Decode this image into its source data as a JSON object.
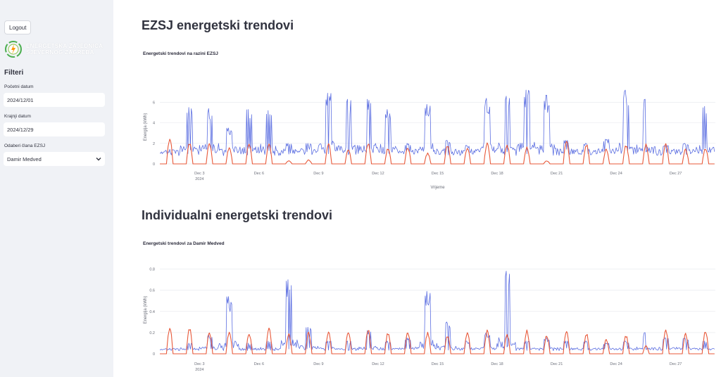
{
  "sidebar": {
    "logout_label": "Logout",
    "logo_text_line1": "ENERGETSKA ZAJEDNICA",
    "logo_text_line2": "SJEVERNOG ZAGREBA",
    "filters_title": "Filteri",
    "start_date_label": "Početni datum",
    "start_date_value": "2024/12/01",
    "end_date_label": "Krajnji datum",
    "end_date_value": "2024/12/29",
    "member_label": "Odaberi člana EZSJ",
    "member_value": "Damir Medved"
  },
  "main": {
    "section1_title": "EZSJ energetski trendovi",
    "section2_title": "Individualni energetski trendovi"
  },
  "colors": {
    "consumption": "#5b6ee1",
    "production": "#e8593a",
    "grid": "#e9ebef",
    "sidebar_bg": "#f0f2f6"
  },
  "chart_data": [
    {
      "type": "line",
      "title": "Energetski trendovi na razini EZSJ",
      "xlabel": "Vrijeme",
      "ylabel": "Energija (kWh)",
      "x_ticks": [
        "Dec 3",
        "Dec 6",
        "Dec 9",
        "Dec 12",
        "Dec 15",
        "Dec 18",
        "Dec 21",
        "Dec 24",
        "Dec 27"
      ],
      "x_tick_sub": "2024",
      "y_ticks": [
        0,
        2,
        4,
        6
      ],
      "ylim": [
        0,
        7.2
      ],
      "xlim_days": [
        1,
        29
      ],
      "series": [
        {
          "color": "#5b6ee1",
          "baseline": 1.1,
          "daily_peaks": [
            1.3,
            5.5,
            5.4,
            3.5,
            5.3,
            5.2,
            2.0,
            2.0,
            6.9,
            6.3,
            6.3,
            5.3,
            2.0,
            5.8,
            2.3,
            1.8,
            6.4,
            6.6,
            7.3,
            6.7,
            2.3,
            2.0,
            2.4,
            7.2,
            6.3,
            1.8,
            2.0,
            5.6,
            1.9
          ]
        },
        {
          "color": "#e8593a",
          "baseline": 0,
          "daily_peaks": [
            2.6,
            2.1,
            2.0,
            1.7,
            2.1,
            2.0,
            0.3,
            0.4,
            2.0,
            1.5,
            2.1,
            1.6,
            1.7,
            1.1,
            1.9,
            1.6,
            2.1,
            2.0,
            1.7,
            0.3,
            2.3,
            2.0,
            1.5,
            1.9,
            2.0,
            2.1,
            1.5,
            1.6,
            2.4
          ]
        }
      ]
    },
    {
      "type": "line",
      "title": "Energetski trendovi za Damir Medved",
      "xlabel": "",
      "ylabel": "Energija (kWh)",
      "x_ticks": [
        "Dec 3",
        "Dec 6",
        "Dec 9",
        "Dec 12",
        "Dec 15",
        "Dec 18",
        "Dec 21",
        "Dec 24",
        "Dec 27"
      ],
      "x_tick_sub": "2024",
      "y_ticks": [
        0,
        0.2,
        0.4,
        0.6,
        0.8
      ],
      "ylim": [
        0,
        0.83
      ],
      "xlim_days": [
        1,
        29
      ],
      "series": [
        {
          "color": "#5b6ee1",
          "baseline": 0.04,
          "daily_peaks": [
            0.05,
            0.1,
            0.18,
            0.54,
            0.1,
            0.12,
            0.7,
            0.25,
            0.12,
            0.12,
            0.22,
            0.12,
            0.15,
            0.59,
            0.3,
            0.12,
            0.2,
            0.78,
            0.12,
            0.15,
            0.12,
            0.12,
            0.1,
            0.12,
            0.2,
            0.15,
            0.15,
            0.12,
            0.12
          ]
        },
        {
          "color": "#e8593a",
          "baseline": 0,
          "daily_peaks": [
            0.26,
            0.25,
            0.2,
            0.22,
            0.2,
            0.25,
            0.19,
            0.21,
            0.21,
            0.22,
            0.24,
            0.21,
            0.22,
            0.21,
            0.18,
            0.21,
            0.23,
            0.2,
            0.23,
            0.18,
            0.22,
            0.2,
            0.14,
            0.18,
            0.08,
            0.24,
            0.2,
            0.23,
            0.24
          ]
        }
      ]
    }
  ]
}
